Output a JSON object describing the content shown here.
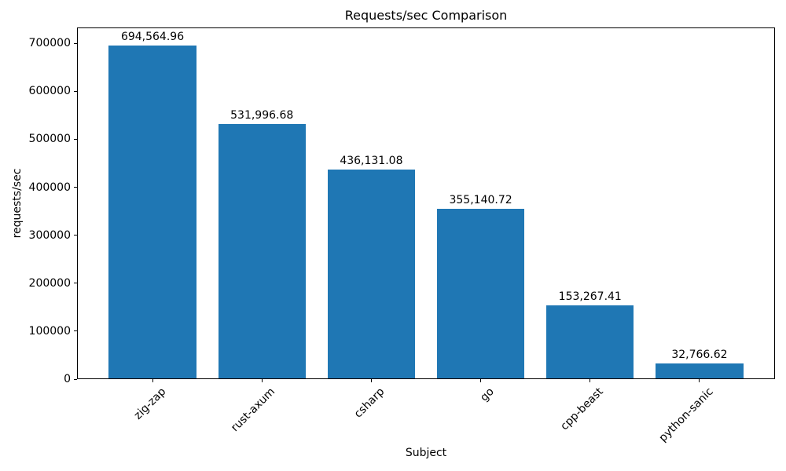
{
  "chart_data": {
    "type": "bar",
    "title": "Requests/sec Comparison",
    "xlabel": "Subject",
    "ylabel": "requests/sec",
    "categories": [
      "zig-zap",
      "rust-axum",
      "csharp",
      "go",
      "cpp-beast",
      "python-sanic"
    ],
    "values": [
      694564.96,
      531996.68,
      436131.08,
      355140.72,
      153267.41,
      32766.62
    ],
    "value_labels": [
      "694,564.96",
      "531,996.68",
      "436,131.08",
      "355,140.72",
      "153,267.41",
      "32,766.62"
    ],
    "yticks": [
      0,
      100000,
      200000,
      300000,
      400000,
      500000,
      600000,
      700000
    ],
    "ylim": [
      0,
      733000
    ],
    "bar_color": "#1f77b4",
    "text_color": "#000000",
    "grid": false,
    "x_tick_rotation": 45,
    "legend": "none"
  }
}
